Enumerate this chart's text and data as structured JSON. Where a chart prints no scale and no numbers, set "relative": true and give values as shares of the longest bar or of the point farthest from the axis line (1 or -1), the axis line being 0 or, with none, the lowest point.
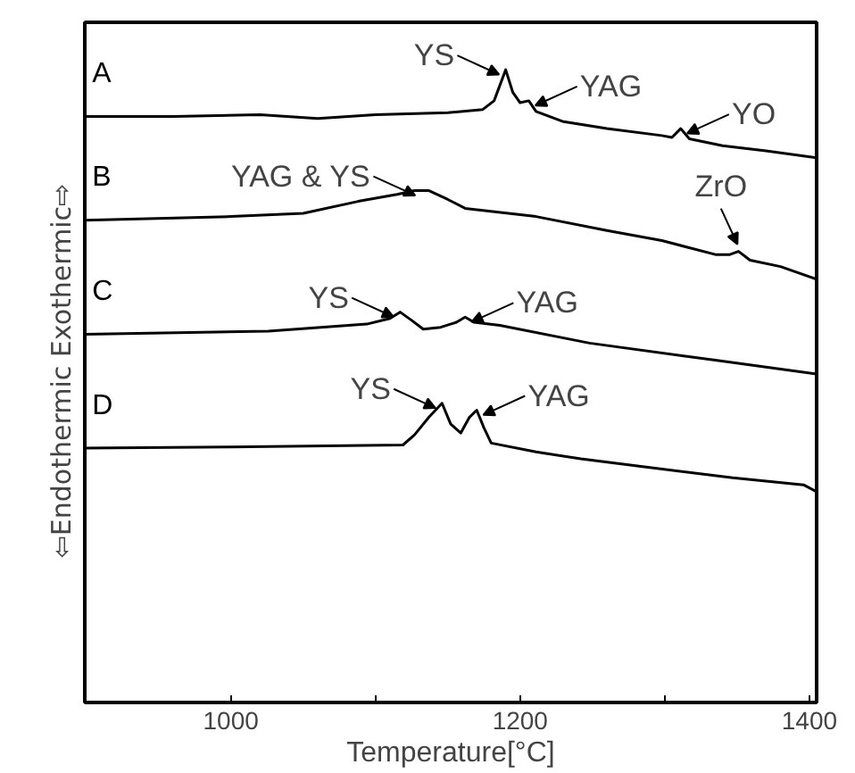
{
  "chart_data": {
    "type": "line",
    "relative": true,
    "xlabel": "Temperature[°C]",
    "ylabel": "⇦Endothermic   Exothermic⇨",
    "xlim": [
      899,
      1405
    ],
    "xticks": [
      1000,
      {
        "value": 1100,
        "label": null
      },
      1200,
      {
        "value": 1300,
        "label": null
      },
      1400
    ],
    "tick_labels": "x",
    "grid": false,
    "marker": "none",
    "line_style": "solid",
    "series": [
      {
        "name": "A",
        "color": "#000000",
        "x": [
          899,
          960,
          1020,
          1060,
          1100,
          1150,
          1174,
          1182,
          1190,
          1195,
          1200,
          1206,
          1211,
          1230,
          1260,
          1298,
          1305,
          1311,
          1317,
          1340,
          1370,
          1405
        ],
        "values": [
          0.926,
          0.926,
          0.929,
          0.923,
          0.929,
          0.932,
          0.937,
          0.951,
          1,
          0.964,
          0.948,
          0.951,
          0.934,
          0.918,
          0.907,
          0.896,
          0.893,
          0.907,
          0.891,
          0.88,
          0.872,
          0.861
        ]
      },
      {
        "name": "B",
        "color": "#000000",
        "x": [
          899,
          1000,
          1050,
          1088,
          1115,
          1127,
          1137,
          1150,
          1162,
          1211,
          1260,
          1298,
          1335,
          1345,
          1351,
          1359,
          1380,
          1405
        ],
        "values": [
          0.762,
          0.768,
          0.773,
          0.792,
          0.803,
          0.809,
          0.809,
          0.795,
          0.781,
          0.768,
          0.746,
          0.73,
          0.708,
          0.708,
          0.713,
          0.699,
          0.689,
          0.669
        ]
      },
      {
        "name": "C",
        "color": "#000000",
        "x": [
          899,
          1026,
          1094,
          1110,
          1117,
          1125,
          1133,
          1145,
          1156,
          1162,
          1168,
          1186,
          1248,
          1335,
          1405
        ],
        "values": [
          0.582,
          0.587,
          0.598,
          0.607,
          0.617,
          0.604,
          0.59,
          0.593,
          0.601,
          0.609,
          0.601,
          0.596,
          0.568,
          0.541,
          0.519
        ]
      },
      {
        "name": "D",
        "color": "#000000",
        "x": [
          899,
          1000,
          1119,
          1127,
          1137,
          1146,
          1152,
          1159,
          1165,
          1170,
          1175,
          1180,
          1211,
          1242,
          1281,
          1347,
          1396,
          1405
        ],
        "values": [
          0.402,
          0.404,
          0.407,
          0.423,
          0.451,
          0.473,
          0.44,
          0.426,
          0.451,
          0.462,
          0.434,
          0.41,
          0.396,
          0.385,
          0.374,
          0.355,
          0.344,
          0.333
        ]
      }
    ],
    "annotations": [
      {
        "text": "YS",
        "x": 1190,
        "y": 1
      },
      {
        "text": "YAG",
        "x": 1206,
        "y": 0.951
      },
      {
        "text": "YO",
        "x": 1311,
        "y": 0.907
      },
      {
        "text": "YAG & YS",
        "x": 1132,
        "y": 0.809
      },
      {
        "text": "ZrO",
        "x": 1351,
        "y": 0.713
      },
      {
        "text": "YS",
        "x": 1117,
        "y": 0.617
      },
      {
        "text": "YAG",
        "x": 1162,
        "y": 0.609
      },
      {
        "text": "YS",
        "x": 1146,
        "y": 0.473
      },
      {
        "text": "YAG",
        "x": 1170,
        "y": 0.462
      }
    ]
  }
}
